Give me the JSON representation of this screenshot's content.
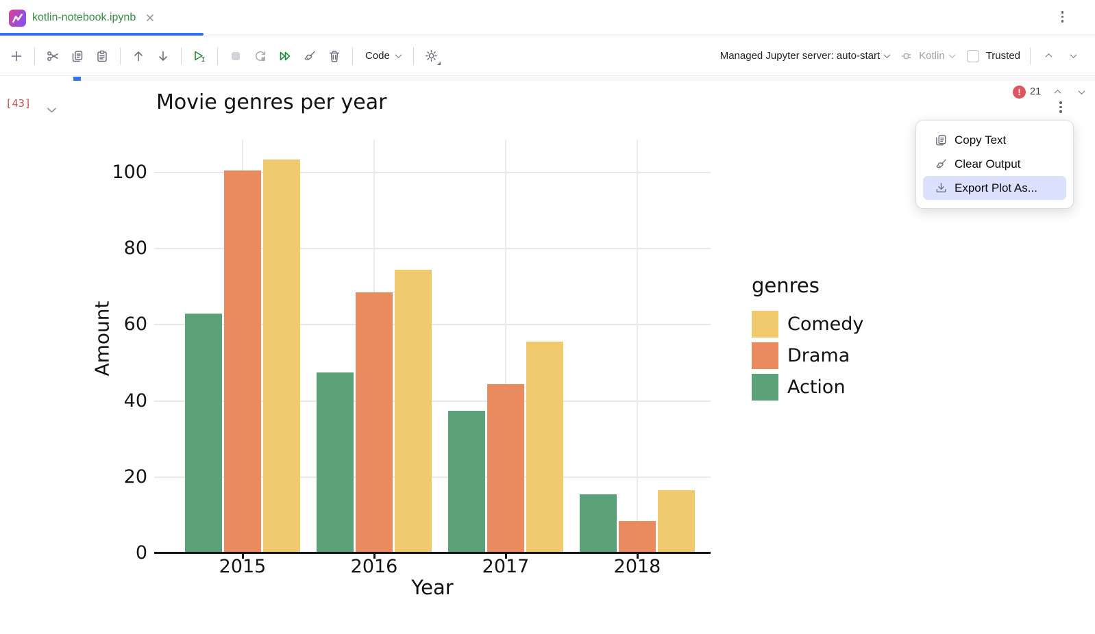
{
  "tab_bar": {
    "tab_title": "kotlin-notebook.ipynb"
  },
  "toolbar": {
    "code_label": "Code",
    "server_label": "Managed Jupyter server: auto-start",
    "kernel_label": "Kotlin",
    "trusted_label": "Trusted"
  },
  "cell": {
    "execution_count": "[43]",
    "error_count": "21",
    "error_glyph": "!"
  },
  "context_menu": {
    "items": [
      {
        "label": "Copy Text",
        "icon": "copy-icon",
        "highlighted": false
      },
      {
        "label": "Clear Output",
        "icon": "broom-icon",
        "highlighted": false
      },
      {
        "label": "Export Plot As...",
        "icon": "download-icon",
        "highlighted": true
      }
    ]
  },
  "chart_data": {
    "type": "bar",
    "title": "Movie genres per year",
    "xlabel": "Year",
    "ylabel": "Amount",
    "categories": [
      "2015",
      "2016",
      "2017",
      "2018"
    ],
    "series": [
      {
        "name": "Action",
        "color": "#5ba17a",
        "values": [
          63,
          47.5,
          37.5,
          15.5
        ]
      },
      {
        "name": "Drama",
        "color": "#e98b5f",
        "values": [
          100.5,
          68.5,
          44.5,
          8.5
        ]
      },
      {
        "name": "Comedy",
        "color": "#f0c96c",
        "values": [
          103.5,
          74.5,
          55.5,
          16.5
        ]
      }
    ],
    "yticks": [
      0,
      20,
      40,
      60,
      80,
      100
    ],
    "ylim": [
      0,
      105
    ],
    "grid": true,
    "legend": {
      "title": "genres",
      "position": "right",
      "entries": [
        "Comedy",
        "Drama",
        "Action"
      ]
    }
  }
}
